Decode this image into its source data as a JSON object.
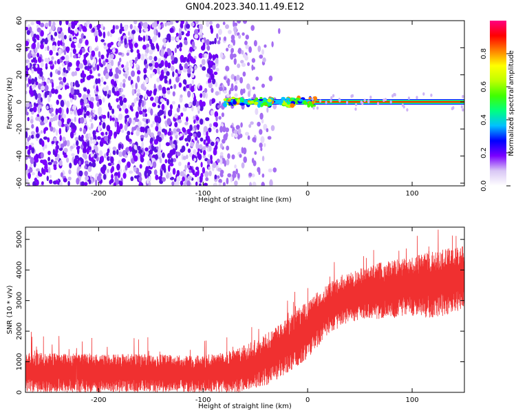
{
  "title": "GN04.2023.340.11.49.E12",
  "chart_data": [
    {
      "type": "heatmap",
      "xlabel": "Height of straight line (km)",
      "ylabel": "Frequency (Hz)",
      "xlim": [
        -270,
        150
      ],
      "ylim": [
        -62,
        60
      ],
      "xticks": [
        -200,
        -100,
        0,
        100
      ],
      "yticks": [
        -60,
        -40,
        -20,
        0,
        20,
        40,
        60
      ],
      "colorbar": {
        "label": "Normalized spectral amplitude",
        "range": [
          0,
          1
        ],
        "ticks": [
          "0.0",
          "0.2",
          "0.4",
          "0.6",
          "0.8"
        ],
        "colors": [
          "#ffffff",
          "#d9c7f5",
          "#7a00ff",
          "#0000ff",
          "#00c0ff",
          "#00ff80",
          "#40ff00",
          "#c0ff00",
          "#ffff00",
          "#ff8000",
          "#ff0000",
          "#ff0080"
        ]
      },
      "features": {
        "noise_region_x": [
          -270,
          -40
        ],
        "signal_line_start_x": -80,
        "signal_line_freq_hz": 0
      },
      "grid": false
    },
    {
      "type": "line",
      "xlabel": "Height of straight line (km)",
      "ylabel": "SNR (10 * v/v)",
      "xlim": [
        -270,
        150
      ],
      "ylim": [
        0,
        5400
      ],
      "xticks": [
        -200,
        -100,
        0,
        100
      ],
      "yticks": [
        0,
        1000,
        2000,
        3000,
        4000,
        5000
      ],
      "color": "#f03030",
      "envelope": {
        "x": [
          -270,
          -200,
          -150,
          -100,
          -80,
          -60,
          -40,
          -20,
          0,
          20,
          40,
          60,
          80,
          100,
          120,
          140,
          150
        ],
        "low": [
          0,
          0,
          0,
          0,
          0,
          0,
          200,
          600,
          1100,
          1900,
          2300,
          2400,
          2400,
          2500,
          2400,
          2600,
          2700
        ],
        "high": [
          1300,
          1250,
          1250,
          1200,
          1300,
          1550,
          1900,
          2400,
          3000,
          3600,
          3900,
          4200,
          4300,
          4450,
          4600,
          4750,
          4800
        ]
      },
      "grid": false
    }
  ]
}
